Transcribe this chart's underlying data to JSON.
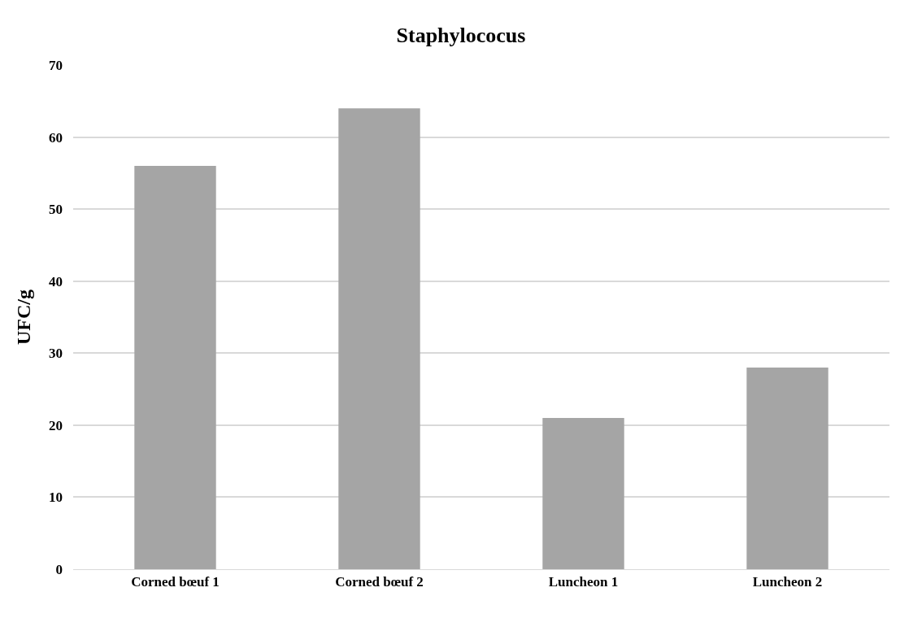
{
  "chart_data": {
    "type": "bar",
    "title": "Staphylococus",
    "ylabel": "UFC/g",
    "categories": [
      "Corned bœuf 1",
      "Corned bœuf 2",
      "Luncheon 1",
      "Luncheon 2"
    ],
    "values": [
      56,
      64,
      21,
      28
    ],
    "color": "#a5a5a5",
    "ylim": [
      0,
      70
    ],
    "yticks": [
      0,
      10,
      20,
      30,
      40,
      50,
      60,
      70
    ],
    "grid": "y"
  }
}
